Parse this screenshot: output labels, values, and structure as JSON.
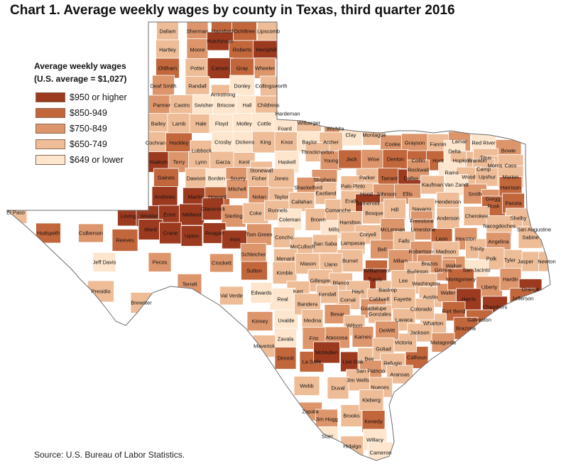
{
  "title": "Chart 1. Average weekly wages by county in Texas, third quarter 2016",
  "legend": {
    "heading": "Average weekly wages",
    "subheading": "(U.S. average = $1,027)",
    "items": [
      {
        "label": "$950 or higher",
        "color": "#9c3a1f"
      },
      {
        "label": "$850-949",
        "color": "#c2663c"
      },
      {
        "label": "$750-849",
        "color": "#dd956c"
      },
      {
        "label": "$650-749",
        "color": "#eebd98"
      },
      {
        "label": "$649 or lower",
        "color": "#fde6cd"
      }
    ]
  },
  "source": "Source: U.S. Bureau of Labor Statistics.",
  "counties": [
    {
      "name": "Dallam",
      "c": 3
    },
    {
      "name": "Sherman",
      "c": 2
    },
    {
      "name": "Hansford",
      "c": 1
    },
    {
      "name": "Ochiltree",
      "c": 1
    },
    {
      "name": "Lipscomb",
      "c": 3
    },
    {
      "name": "Hartley",
      "c": 3
    },
    {
      "name": "Moore",
      "c": 2
    },
    {
      "name": "Hutchinson",
      "c": 0
    },
    {
      "name": "Roberts",
      "c": 1
    },
    {
      "name": "Hemphill",
      "c": 0
    },
    {
      "name": "Oldham",
      "c": 1
    },
    {
      "name": "Potter",
      "c": 3
    },
    {
      "name": "Carson",
      "c": 0
    },
    {
      "name": "Gray",
      "c": 1
    },
    {
      "name": "Wheeler",
      "c": 2
    },
    {
      "name": "Deaf Smith",
      "c": 2
    },
    {
      "name": "Randall",
      "c": 3
    },
    {
      "name": "Armstrong",
      "c": 3
    },
    {
      "name": "Donley",
      "c": 4
    },
    {
      "name": "Collingsworth",
      "c": 3
    },
    {
      "name": "Parmer",
      "c": 2
    },
    {
      "name": "Castro",
      "c": 3
    },
    {
      "name": "Swisher",
      "c": 4
    },
    {
      "name": "Briscoe",
      "c": 4
    },
    {
      "name": "Hall",
      "c": 4
    },
    {
      "name": "Childress",
      "c": 3
    },
    {
      "name": "Bailey",
      "c": 3
    },
    {
      "name": "Lamb",
      "c": 3
    },
    {
      "name": "Hale",
      "c": 3
    },
    {
      "name": "Floyd",
      "c": 4
    },
    {
      "name": "Motley",
      "c": 4
    },
    {
      "name": "Cottle",
      "c": 4
    },
    {
      "name": "Hardeman",
      "c": 3
    },
    {
      "name": "Foard",
      "c": 4
    },
    {
      "name": "Wilbarger",
      "c": 3
    },
    {
      "name": "Wichita",
      "c": 2
    },
    {
      "name": "Clay",
      "c": 4
    },
    {
      "name": "Montague",
      "c": 3
    },
    {
      "name": "Cooke",
      "c": 2
    },
    {
      "name": "Grayson",
      "c": 2
    },
    {
      "name": "Fannin",
      "c": 3
    },
    {
      "name": "Lamar",
      "c": 2
    },
    {
      "name": "Red River",
      "c": 4
    },
    {
      "name": "Bowie",
      "c": 2
    },
    {
      "name": "Cochran",
      "c": 3
    },
    {
      "name": "Hockley",
      "c": 1
    },
    {
      "name": "Lubbock",
      "c": 3
    },
    {
      "name": "Crosby",
      "c": 4
    },
    {
      "name": "Dickens",
      "c": 4
    },
    {
      "name": "King",
      "c": 3
    },
    {
      "name": "Knox",
      "c": 3
    },
    {
      "name": "Baylor",
      "c": 4
    },
    {
      "name": "Archer",
      "c": 3
    },
    {
      "name": "Throckmorton",
      "c": 3
    },
    {
      "name": "Young",
      "c": 2
    },
    {
      "name": "Jack",
      "c": 1
    },
    {
      "name": "Wise",
      "c": 2
    },
    {
      "name": "Denton",
      "c": 1
    },
    {
      "name": "Collin",
      "c": 1
    },
    {
      "name": "Hunt",
      "c": 1
    },
    {
      "name": "Delta",
      "c": 4
    },
    {
      "name": "Hopkins",
      "c": 3
    },
    {
      "name": "Franklin",
      "c": 3
    },
    {
      "name": "Titus",
      "c": 3
    },
    {
      "name": "Morris",
      "c": 3
    },
    {
      "name": "Cass",
      "c": 3
    },
    {
      "name": "Camp",
      "c": 3
    },
    {
      "name": "Yoakum",
      "c": 0
    },
    {
      "name": "Terry",
      "c": 2
    },
    {
      "name": "Lynn",
      "c": 3
    },
    {
      "name": "Garza",
      "c": 3
    },
    {
      "name": "Kent",
      "c": 3
    },
    {
      "name": "Stonewall",
      "c": 3
    },
    {
      "name": "Haskell",
      "c": 4
    },
    {
      "name": "Stephens",
      "c": 2
    },
    {
      "name": "Parker",
      "c": 3
    },
    {
      "name": "Tarrant",
      "c": 1
    },
    {
      "name": "Dallas",
      "c": 0
    },
    {
      "name": "Rockwall",
      "c": 2
    },
    {
      "name": "Rains",
      "c": 4
    },
    {
      "name": "Wood",
      "c": 3
    },
    {
      "name": "Upshur",
      "c": 3
    },
    {
      "name": "Marion",
      "c": 3
    },
    {
      "name": "Gaines",
      "c": 1
    },
    {
      "name": "Dawson",
      "c": 3
    },
    {
      "name": "Borden",
      "c": 4
    },
    {
      "name": "Scurry",
      "c": 2
    },
    {
      "name": "Fisher",
      "c": 3
    },
    {
      "name": "Jones",
      "c": 3
    },
    {
      "name": "Shackelford",
      "c": 2
    },
    {
      "name": "Palo Pinto",
      "c": 3
    },
    {
      "name": "Kaufman",
      "c": 3
    },
    {
      "name": "Van Zandt",
      "c": 4
    },
    {
      "name": "Smith",
      "c": 2
    },
    {
      "name": "Gregg",
      "c": 2
    },
    {
      "name": "Harrison",
      "c": 1
    },
    {
      "name": "Andrews",
      "c": 0
    },
    {
      "name": "Martin",
      "c": 0
    },
    {
      "name": "Howard",
      "c": 1
    },
    {
      "name": "Mitchell",
      "c": 2
    },
    {
      "name": "Nolan",
      "c": 2
    },
    {
      "name": "Taylor",
      "c": 3
    },
    {
      "name": "Eastland",
      "c": 3
    },
    {
      "name": "Hood",
      "c": 3
    },
    {
      "name": "Johnson",
      "c": 2
    },
    {
      "name": "Ellis",
      "c": 2
    },
    {
      "name": "Henderson",
      "c": 3
    },
    {
      "name": "Rusk",
      "c": 1
    },
    {
      "name": "Panola",
      "c": 1
    },
    {
      "name": "El Paso",
      "c": 3
    },
    {
      "name": "Hudspeth",
      "c": 1
    },
    {
      "name": "Culberson",
      "c": 2
    },
    {
      "name": "Loving",
      "c": 0
    },
    {
      "name": "Winkler",
      "c": 0
    },
    {
      "name": "Ector",
      "c": 0
    },
    {
      "name": "Midland",
      "c": 0
    },
    {
      "name": "Glasscock",
      "c": 0
    },
    {
      "name": "Sterling",
      "c": 2
    },
    {
      "name": "Coke",
      "c": 3
    },
    {
      "name": "Runnels",
      "c": 3
    },
    {
      "name": "Callahan",
      "c": 3
    },
    {
      "name": "Coleman",
      "c": 4
    },
    {
      "name": "Brown",
      "c": 3
    },
    {
      "name": "Comanche",
      "c": 3
    },
    {
      "name": "Erath",
      "c": 3
    },
    {
      "name": "Somervell",
      "c": 0
    },
    {
      "name": "Bosque",
      "c": 3
    },
    {
      "name": "Hill",
      "c": 3
    },
    {
      "name": "Navarro",
      "c": 3
    },
    {
      "name": "Freestone",
      "c": 2
    },
    {
      "name": "Anderson",
      "c": 3
    },
    {
      "name": "Cherokee",
      "c": 3
    },
    {
      "name": "Shelby",
      "c": 3
    },
    {
      "name": "Reeves",
      "c": 1
    },
    {
      "name": "Ward",
      "c": 0
    },
    {
      "name": "Crane",
      "c": 0
    },
    {
      "name": "Upton",
      "c": 0
    },
    {
      "name": "Reagan",
      "c": 0
    },
    {
      "name": "Irion",
      "c": 0
    },
    {
      "name": "Tom Green",
      "c": 2
    },
    {
      "name": "Concho",
      "c": 3
    },
    {
      "name": "McCulloch",
      "c": 3
    },
    {
      "name": "Mills",
      "c": 4
    },
    {
      "name": "Hamilton",
      "c": 3
    },
    {
      "name": "Coryell",
      "c": 3
    },
    {
      "name": "McLennan",
      "c": 2
    },
    {
      "name": "Limestone",
      "c": 2
    },
    {
      "name": "Leon",
      "c": 1
    },
    {
      "name": "Houston",
      "c": 2
    },
    {
      "name": "Nacogdoches",
      "c": 3
    },
    {
      "name": "San Augustine",
      "c": 3
    },
    {
      "name": "Sabine",
      "c": 3
    },
    {
      "name": "Jeff Davis",
      "c": 4
    },
    {
      "name": "Pecos",
      "c": 2
    },
    {
      "name": "Crockett",
      "c": 2
    },
    {
      "name": "Schleicher",
      "c": 2
    },
    {
      "name": "Sutton",
      "c": 1
    },
    {
      "name": "Menard",
      "c": 3
    },
    {
      "name": "Kimble",
      "c": 3
    },
    {
      "name": "Mason",
      "c": 3
    },
    {
      "name": "San Saba",
      "c": 3
    },
    {
      "name": "Lampasas",
      "c": 3
    },
    {
      "name": "Bell",
      "c": 2
    },
    {
      "name": "Falls",
      "c": 3
    },
    {
      "name": "Robertson",
      "c": 2
    },
    {
      "name": "Madison",
      "c": 3
    },
    {
      "name": "Trinity",
      "c": 3
    },
    {
      "name": "Angelina",
      "c": 2
    },
    {
      "name": "Newton",
      "c": 3
    },
    {
      "name": "Jasper",
      "c": 3
    },
    {
      "name": "Tyler",
      "c": 3
    },
    {
      "name": "Polk",
      "c": 3
    },
    {
      "name": "San Jacinto",
      "c": 4
    },
    {
      "name": "Walker",
      "c": 2
    },
    {
      "name": "Grimes",
      "c": 2
    },
    {
      "name": "Brazos",
      "c": 2
    },
    {
      "name": "Milam",
      "c": 2
    },
    {
      "name": "Burleson",
      "c": 3
    },
    {
      "name": "Williamson",
      "c": 1
    },
    {
      "name": "Travis",
      "c": 0
    },
    {
      "name": "Burnet",
      "c": 3
    },
    {
      "name": "Llano",
      "c": 3
    },
    {
      "name": "Gillespie",
      "c": 3
    },
    {
      "name": "Blanco",
      "c": 3
    },
    {
      "name": "Hays",
      "c": 3
    },
    {
      "name": "Bastrop",
      "c": 3
    },
    {
      "name": "Lee",
      "c": 3
    },
    {
      "name": "Washington",
      "c": 3
    },
    {
      "name": "Austin",
      "c": 3
    },
    {
      "name": "Waller",
      "c": 2
    },
    {
      "name": "Montgomery",
      "c": 1
    },
    {
      "name": "Liberty",
      "c": 2
    },
    {
      "name": "Hardin",
      "c": 2
    },
    {
      "name": "Orange",
      "c": 0
    },
    {
      "name": "Jefferson",
      "c": 1
    },
    {
      "name": "Chambers",
      "c": 0
    },
    {
      "name": "Harris",
      "c": 0
    },
    {
      "name": "Galveston",
      "c": 1
    },
    {
      "name": "Fort Bend",
      "c": 1
    },
    {
      "name": "Brazoria",
      "c": 1
    },
    {
      "name": "Wharton",
      "c": 3
    },
    {
      "name": "Colorado",
      "c": 3
    },
    {
      "name": "Fayette",
      "c": 3
    },
    {
      "name": "Caldwell",
      "c": 3
    },
    {
      "name": "Guadalupe",
      "c": 2
    },
    {
      "name": "Comal",
      "c": 3
    },
    {
      "name": "Kendall",
      "c": 3
    },
    {
      "name": "Kerr",
      "c": 3
    },
    {
      "name": "Real",
      "c": 4
    },
    {
      "name": "Edwards",
      "c": 4
    },
    {
      "name": "Val Verde",
      "c": 3
    },
    {
      "name": "Presidio",
      "c": 3
    },
    {
      "name": "Brewster",
      "c": 3
    },
    {
      "name": "Terrell",
      "c": 2
    },
    {
      "name": "Kinney",
      "c": 2
    },
    {
      "name": "Uvalde",
      "c": 4
    },
    {
      "name": "Bandera",
      "c": 3
    },
    {
      "name": "Medina",
      "c": 3
    },
    {
      "name": "Bexar",
      "c": 2
    },
    {
      "name": "Wilson",
      "c": 3
    },
    {
      "name": "Gonzales",
      "c": 3
    },
    {
      "name": "Lavaca",
      "c": 3
    },
    {
      "name": "Jackson",
      "c": 3
    },
    {
      "name": "Matagorda",
      "c": 2
    },
    {
      "name": "Calhoun",
      "c": 1
    },
    {
      "name": "Victoria",
      "c": 3
    },
    {
      "name": "DeWitt",
      "c": 2
    },
    {
      "name": "Karnes",
      "c": 2
    },
    {
      "name": "Atascosa",
      "c": 2
    },
    {
      "name": "Frio",
      "c": 2
    },
    {
      "name": "Zavala",
      "c": 4
    },
    {
      "name": "Maverick",
      "c": 3
    },
    {
      "name": "Dimmit",
      "c": 1
    },
    {
      "name": "La Salle",
      "c": 1
    },
    {
      "name": "McMullen",
      "c": 0
    },
    {
      "name": "Live Oak",
      "c": 0
    },
    {
      "name": "Bee",
      "c": 3
    },
    {
      "name": "Goliad",
      "c": 3
    },
    {
      "name": "Refugio",
      "c": 3
    },
    {
      "name": "Aransas",
      "c": 3
    },
    {
      "name": "San Patricio",
      "c": 2
    },
    {
      "name": "Nueces",
      "c": 3
    },
    {
      "name": "Jim Wells",
      "c": 3
    },
    {
      "name": "Duval",
      "c": 3
    },
    {
      "name": "Webb",
      "c": 3
    },
    {
      "name": "Zapata",
      "c": 2
    },
    {
      "name": "Jim Hogg",
      "c": 2
    },
    {
      "name": "Brooks",
      "c": 3
    },
    {
      "name": "Kleberg",
      "c": 3
    },
    {
      "name": "Kenedy",
      "c": 1
    },
    {
      "name": "Starr",
      "c": 4
    },
    {
      "name": "Hidalgo",
      "c": 3
    },
    {
      "name": "Willacy",
      "c": 4
    },
    {
      "name": "Cameron",
      "c": 4
    }
  ]
}
